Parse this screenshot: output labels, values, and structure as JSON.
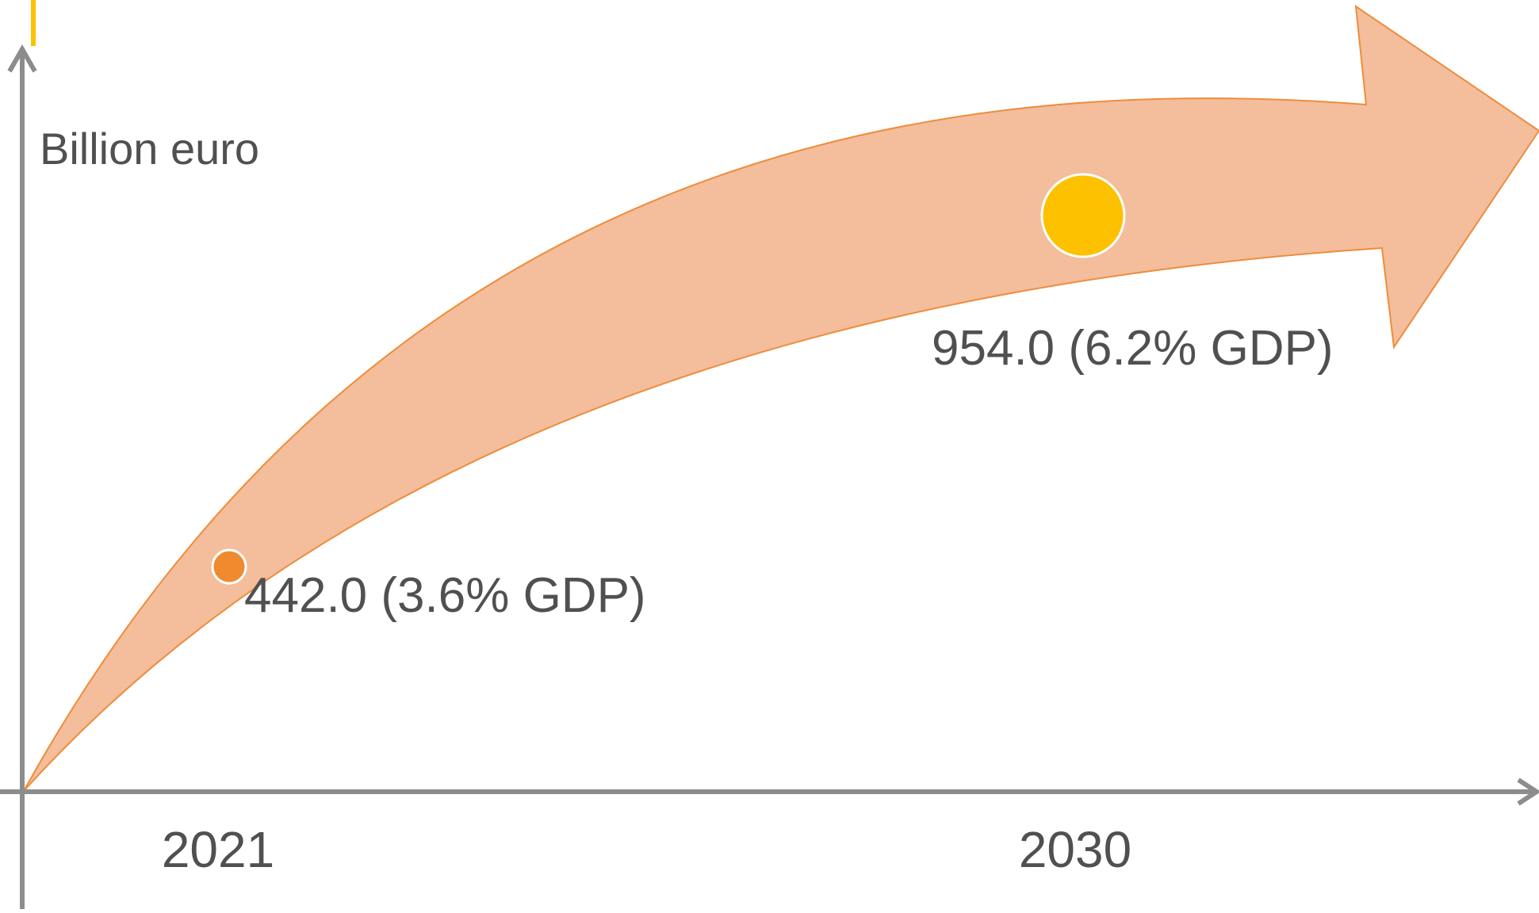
{
  "chart_data": {
    "type": "scatter",
    "title": "",
    "xlabel": "",
    "ylabel": "Billion euro",
    "x": [
      "2021",
      "2030"
    ],
    "series": [
      {
        "values": [
          442.0,
          954.0
        ],
        "labels": [
          "442.0 (3.6% GDP)",
          "954.0 (6.2% GDP)"
        ]
      }
    ],
    "grid": false,
    "legend": "none"
  },
  "colors": {
    "axis": "#8c8c8c",
    "arrow_fill": "#f4bd9b",
    "arrow_stroke": "#ed8d3c",
    "marker_2021": "#ef8a2f",
    "marker_2030": "#fdc100",
    "text": "#505050",
    "accent_bar": "#fdc100"
  }
}
